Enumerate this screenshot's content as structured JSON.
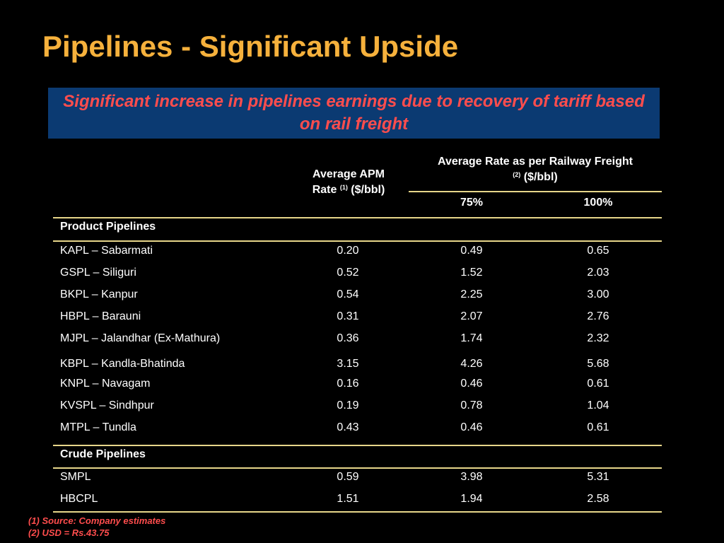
{
  "title": "Pipelines - Significant Upside",
  "banner": "Significant increase in pipelines earnings due to recovery of tariff based on rail freight",
  "header": {
    "apm_line1": "Average APM",
    "apm_line2_pre": "Rate ",
    "apm_sup": "(1)",
    "apm_line2_post": " ($/bbl)",
    "rail_line1": "Average Rate as per Railway Freight",
    "rail_sup": "(2)",
    "rail_line2_post": " ($/bbl)",
    "col_75": "75%",
    "col_100": "100%"
  },
  "sections": {
    "product": "Product Pipelines",
    "crude": "Crude Pipelines"
  },
  "product_rows": [
    {
      "name": "KAPL – Sabarmati",
      "apm": "0.20",
      "r75": "0.49",
      "r100": "0.65"
    },
    {
      "name": "GSPL – Siliguri",
      "apm": "0.52",
      "r75": "1.52",
      "r100": "2.03"
    },
    {
      "name": "BKPL – Kanpur",
      "apm": "0.54",
      "r75": "2.25",
      "r100": "3.00"
    },
    {
      "name": "HBPL – Barauni",
      "apm": "0.31",
      "r75": "2.07",
      "r100": "2.76"
    },
    {
      "name": "MJPL – Jalandhar (Ex-Mathura)",
      "apm": "0.36",
      "r75": "1.74",
      "r100": "2.32"
    },
    {
      "name": "KBPL – Kandla-Bhatinda",
      "apm": "3.15",
      "r75": "4.26",
      "r100": "5.68"
    },
    {
      "name": "KNPL – Navagam",
      "apm": "0.16",
      "r75": "0.46",
      "r100": "0.61"
    },
    {
      "name": "KVSPL – Sindhpur",
      "apm": "0.19",
      "r75": "0.78",
      "r100": "1.04"
    },
    {
      "name": "MTPL – Tundla",
      "apm": "0.43",
      "r75": "0.46",
      "r100": "0.61"
    }
  ],
  "crude_rows": [
    {
      "name": "SMPL",
      "apm": "0.59",
      "r75": "3.98",
      "r100": "5.31"
    },
    {
      "name": "HBCPL",
      "apm": "1.51",
      "r75": "1.94",
      "r100": "2.58"
    }
  ],
  "footnotes": [
    "(1) Source: Company estimates",
    "(2) USD = Rs.43.75"
  ]
}
